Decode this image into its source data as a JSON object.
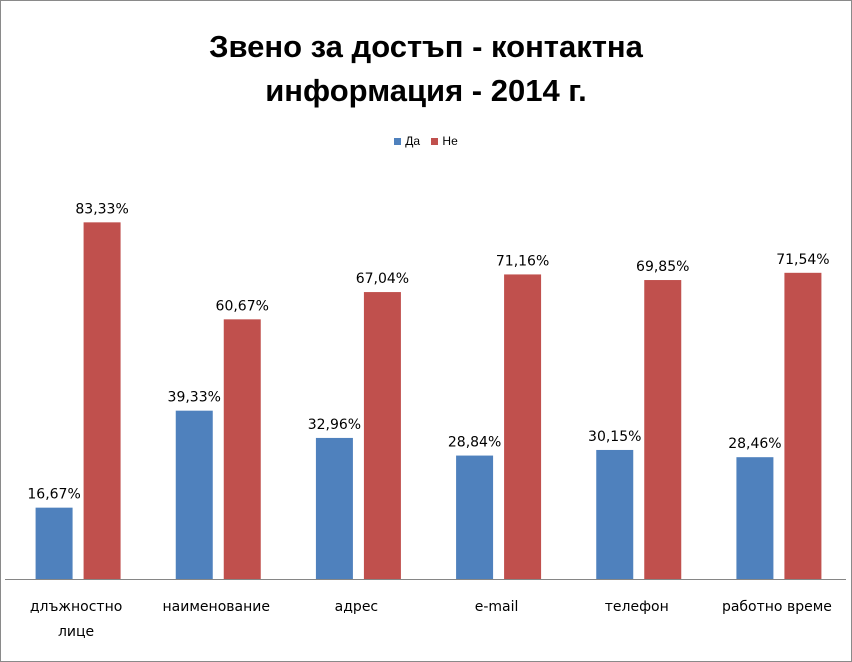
{
  "chart_data": {
    "type": "bar",
    "title_lines": [
      "Звено за достъп - контактна",
      "информация - 2014 г."
    ],
    "categories": [
      [
        "длъжностно",
        "лице"
      ],
      [
        "наименование"
      ],
      [
        "адрес"
      ],
      [
        "e-mail"
      ],
      [
        "телефон"
      ],
      [
        "работно време"
      ]
    ],
    "series": [
      {
        "name": "Да",
        "color": "#4F81BD",
        "values": [
          16.67,
          39.33,
          32.96,
          28.84,
          30.15,
          28.46
        ],
        "labels": [
          "16,67%",
          "39,33%",
          "32,96%",
          "28,84%",
          "30,15%",
          "28,46%"
        ]
      },
      {
        "name": "Не",
        "color": "#C0504D",
        "values": [
          83.33,
          60.67,
          67.04,
          71.16,
          69.85,
          71.54
        ],
        "labels": [
          "83,33%",
          "60,67%",
          "67,04%",
          "71,16%",
          "69,85%",
          "71,54%"
        ]
      }
    ],
    "ylim": [
      0,
      100
    ],
    "xlabel": "",
    "ylabel": "",
    "legend": "top-center",
    "grid": false
  }
}
